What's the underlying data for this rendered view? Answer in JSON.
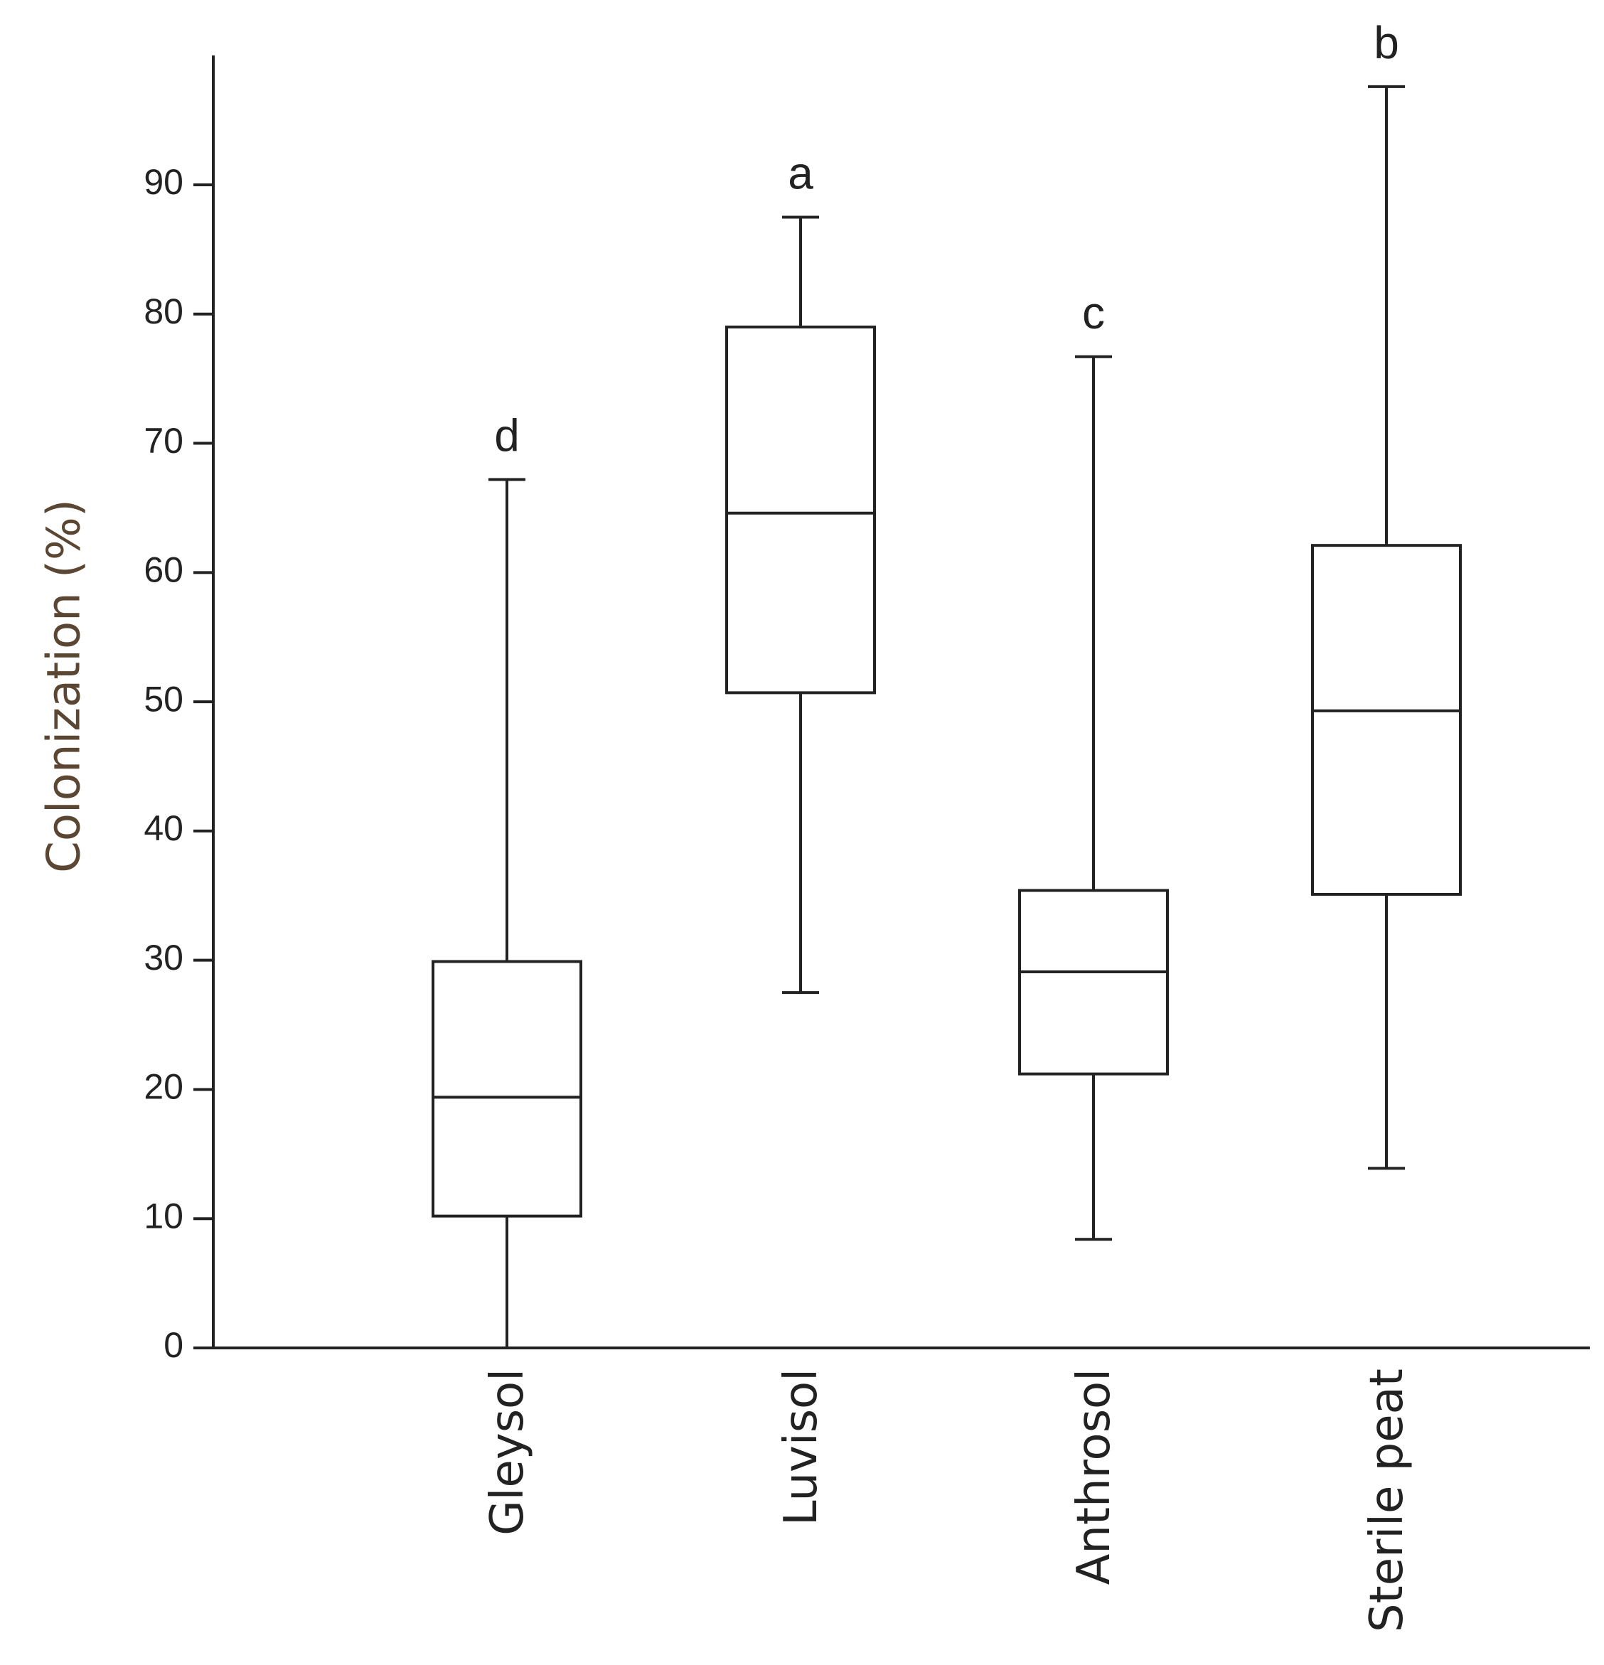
{
  "chart_data": {
    "type": "box",
    "title": "",
    "xlabel": "",
    "ylabel": "Colonization (%)",
    "ylim": [
      0,
      100
    ],
    "yticks": [
      0,
      10,
      20,
      30,
      40,
      50,
      60,
      70,
      80,
      90
    ],
    "grid": false,
    "categories": [
      "Gleysol",
      "Luvisol",
      "Anthrosol",
      "Sterile peat"
    ],
    "boxes": [
      {
        "category": "Gleysol",
        "min": 0,
        "q1": 10.2,
        "median": 19.4,
        "q3": 29.9,
        "max": 67.2,
        "letter": "d"
      },
      {
        "category": "Luvisol",
        "min": 27.5,
        "q1": 50.7,
        "median": 64.6,
        "q3": 79.0,
        "max": 87.5,
        "letter": "a"
      },
      {
        "category": "Anthrosol",
        "min": 8.4,
        "q1": 21.2,
        "median": 29.1,
        "q3": 35.4,
        "max": 76.7,
        "letter": "c"
      },
      {
        "category": "Sterile peat",
        "min": 13.9,
        "q1": 35.1,
        "median": 49.3,
        "q3": 62.1,
        "max": 97.6,
        "letter": "b"
      }
    ],
    "colors": {
      "line": "#222222",
      "axis_title": "#5a4632",
      "background": "#ffffff"
    }
  }
}
